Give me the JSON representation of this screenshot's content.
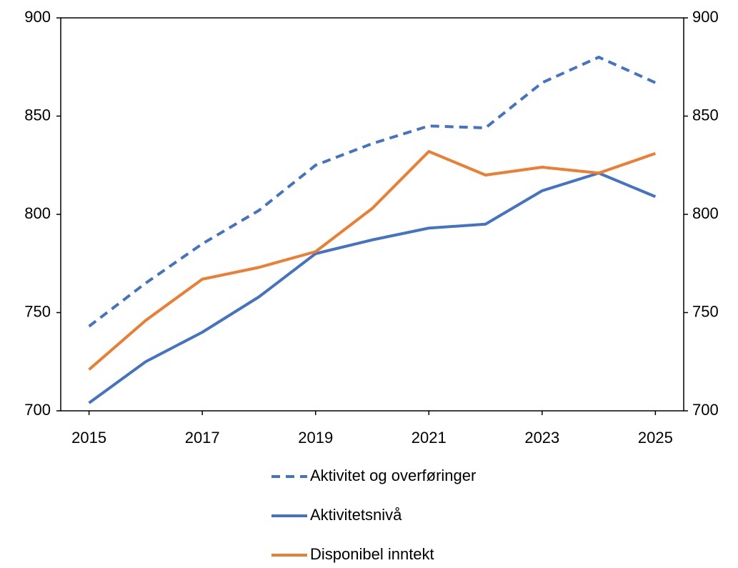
{
  "chart_data": {
    "type": "line",
    "x": [
      2015,
      2016,
      2017,
      2018,
      2019,
      2020,
      2021,
      2022,
      2023,
      2024,
      2025
    ],
    "series": [
      {
        "name": "Aktivitet og overføringer",
        "color": "#4472c4",
        "dash": true,
        "values": [
          743,
          765,
          785,
          802,
          825,
          836,
          845,
          844,
          867,
          880,
          867
        ]
      },
      {
        "name": "Aktivitetsnivå",
        "color": "#4472c4",
        "dash": false,
        "values": [
          704,
          725,
          740,
          758,
          780,
          787,
          793,
          795,
          812,
          821,
          809
        ]
      },
      {
        "name": "Disponibel inntekt",
        "color": "#ed7d31",
        "dash": false,
        "values": [
          721,
          746,
          767,
          773,
          781,
          803,
          832,
          820,
          824,
          821,
          831
        ]
      }
    ],
    "xlim": [
      2014.5,
      2025.5
    ],
    "xticks": [
      2015,
      2017,
      2019,
      2021,
      2023,
      2025
    ],
    "ylim": [
      700,
      900
    ],
    "yticks": [
      700,
      750,
      800,
      850,
      900
    ],
    "y2lim": [
      700,
      900
    ],
    "y2ticks": [
      700,
      750,
      800,
      850,
      900
    ],
    "grid": false,
    "legend": "bottom"
  }
}
